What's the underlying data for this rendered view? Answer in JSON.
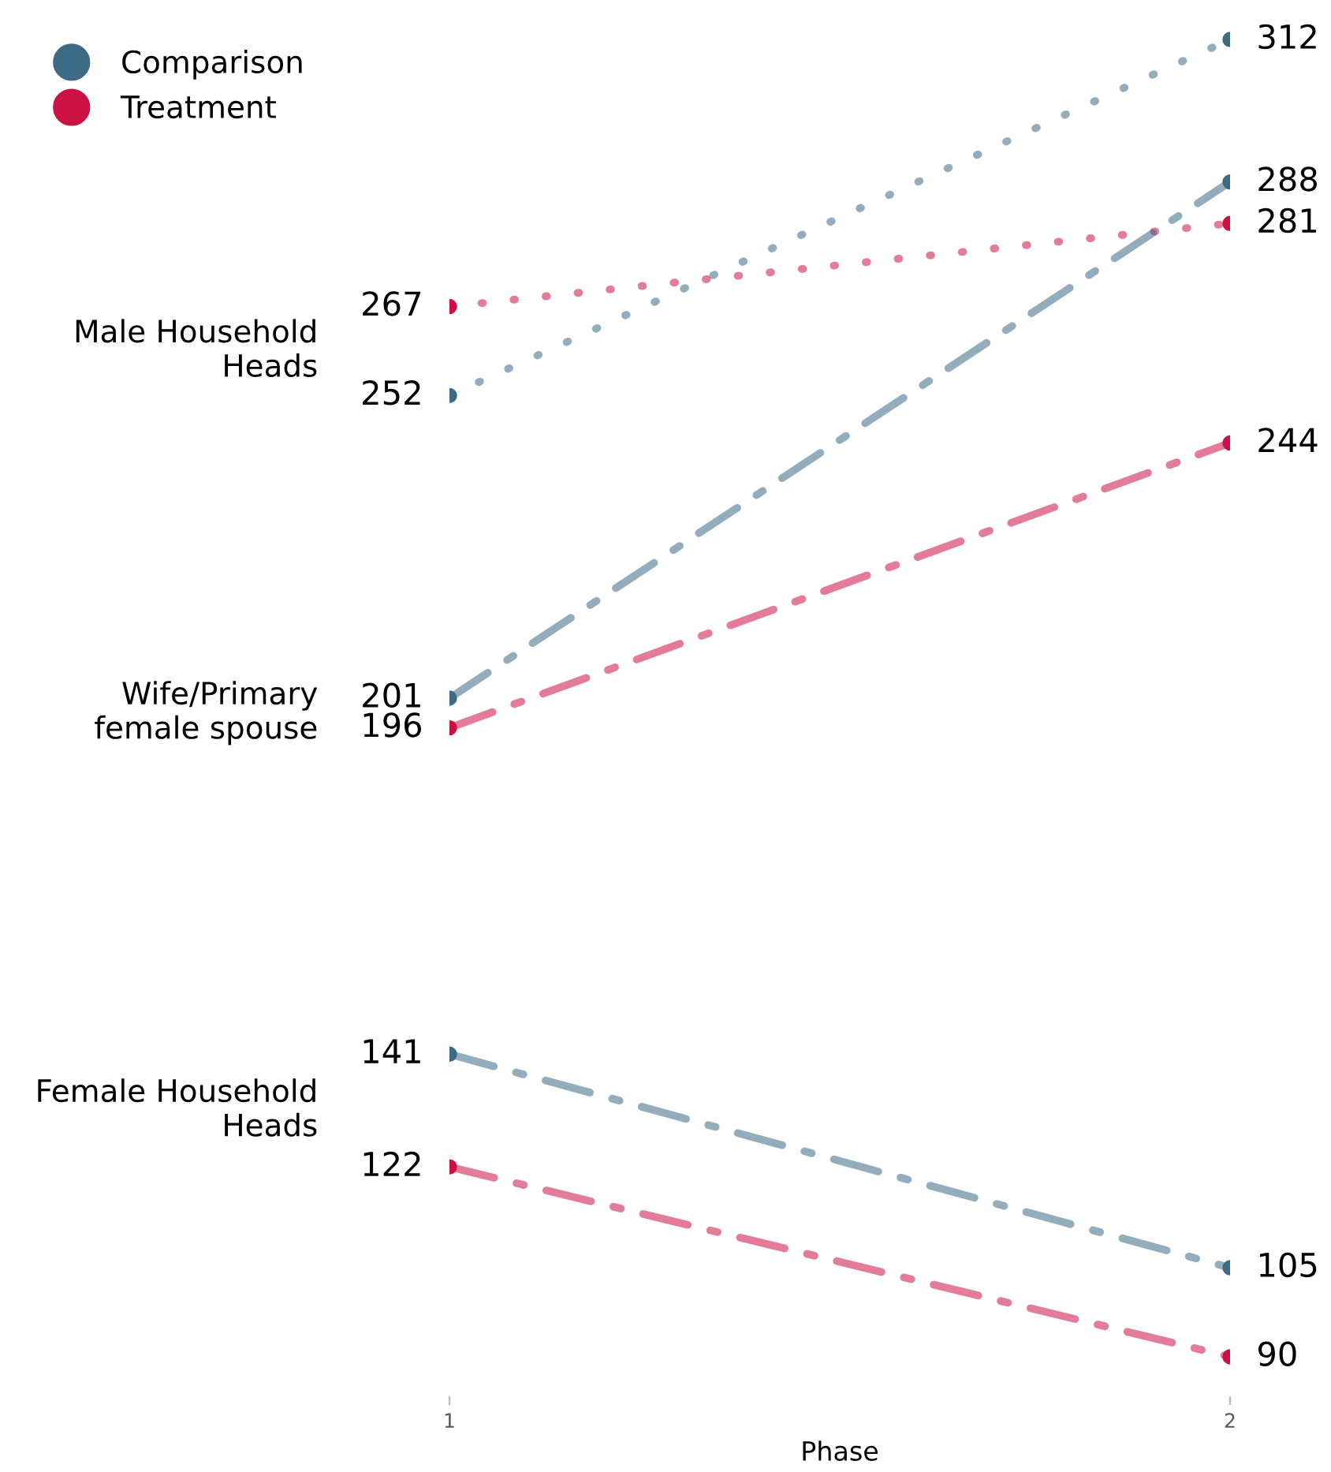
{
  "chart_data": {
    "type": "line",
    "xlabel": "Phase",
    "categories": [
      "1",
      "2"
    ],
    "tick_labels": "x",
    "grid": false,
    "legend": "top left",
    "marker": "circle",
    "data_labels": true,
    "series": [
      {
        "name": "Comparison",
        "color": "#3d6a85",
        "values": [
          252,
          312
        ],
        "line_style": "dotted"
      },
      {
        "name": "Treatment",
        "color": "#cc1144",
        "values": [
          267,
          281
        ],
        "line_style": "dotted"
      },
      {
        "color": "#3d6a85",
        "values": [
          201,
          288
        ],
        "line_style": "dashed"
      },
      {
        "color": "#cc1144",
        "values": [
          196,
          244
        ],
        "line_style": "dashed"
      },
      {
        "color": "#3d6a85",
        "values": [
          141,
          105
        ],
        "line_style": "dashed"
      },
      {
        "color": "#cc1144",
        "values": [
          122,
          90
        ],
        "line_style": "dashed"
      }
    ],
    "annotations": [
      "Male Household\nHeads",
      "Wife/Primary\nfemale spouse",
      "Female Household\nHeads"
    ]
  }
}
